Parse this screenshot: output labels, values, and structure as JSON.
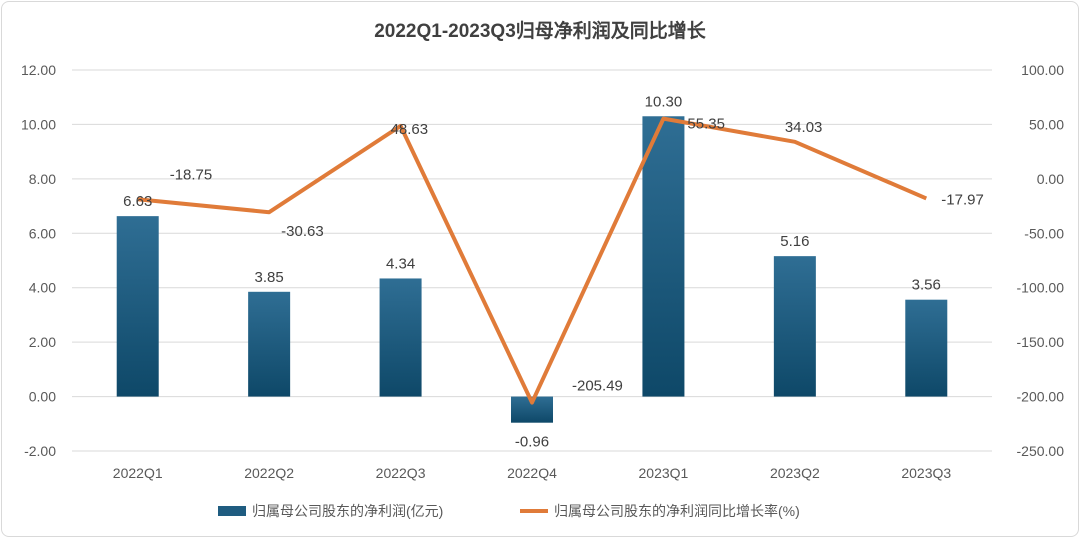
{
  "chart_data": {
    "type": "bar+line",
    "title": "2022Q1-2023Q3归母净利润及同比增长",
    "categories": [
      "2022Q1",
      "2022Q2",
      "2022Q3",
      "2022Q4",
      "2023Q1",
      "2023Q2",
      "2023Q3"
    ],
    "series": [
      {
        "name": "归属母公司股东的净利润(亿元)",
        "type": "bar",
        "axis": "left",
        "values": [
          6.63,
          3.85,
          4.34,
          -0.96,
          10.3,
          5.16,
          3.56
        ],
        "labels": [
          "6.63",
          "3.85",
          "4.34",
          "-0.96",
          "10.30",
          "5.16",
          "3.56"
        ],
        "color": "#1f5c80"
      },
      {
        "name": "归属母公司股东的净利润同比增长率(%)",
        "type": "line",
        "axis": "right",
        "values": [
          -18.75,
          -30.63,
          48.63,
          -205.49,
          55.35,
          34.03,
          -17.97
        ],
        "labels": [
          "-18.75",
          "-30.63",
          "48.63",
          "-205.49",
          "55.35",
          "34.03",
          "-17.97"
        ],
        "color": "#e07b39"
      }
    ],
    "left_axis": {
      "ylim": [
        -2,
        12
      ],
      "ticks": [
        "12.00",
        "10.00",
        "8.00",
        "6.00",
        "4.00",
        "2.00",
        "0.00",
        "-2.00"
      ],
      "tick_values": [
        12,
        10,
        8,
        6,
        4,
        2,
        0,
        -2
      ]
    },
    "right_axis": {
      "ylim": [
        -250,
        100
      ],
      "ticks": [
        "100.00",
        "50.00",
        "0.00",
        "-50.00",
        "-100.00",
        "-150.00",
        "-200.00",
        "-250.00"
      ],
      "tick_values": [
        100,
        50,
        0,
        -50,
        -100,
        -150,
        -200,
        -250
      ]
    },
    "grid": true,
    "legend": "bottom"
  }
}
